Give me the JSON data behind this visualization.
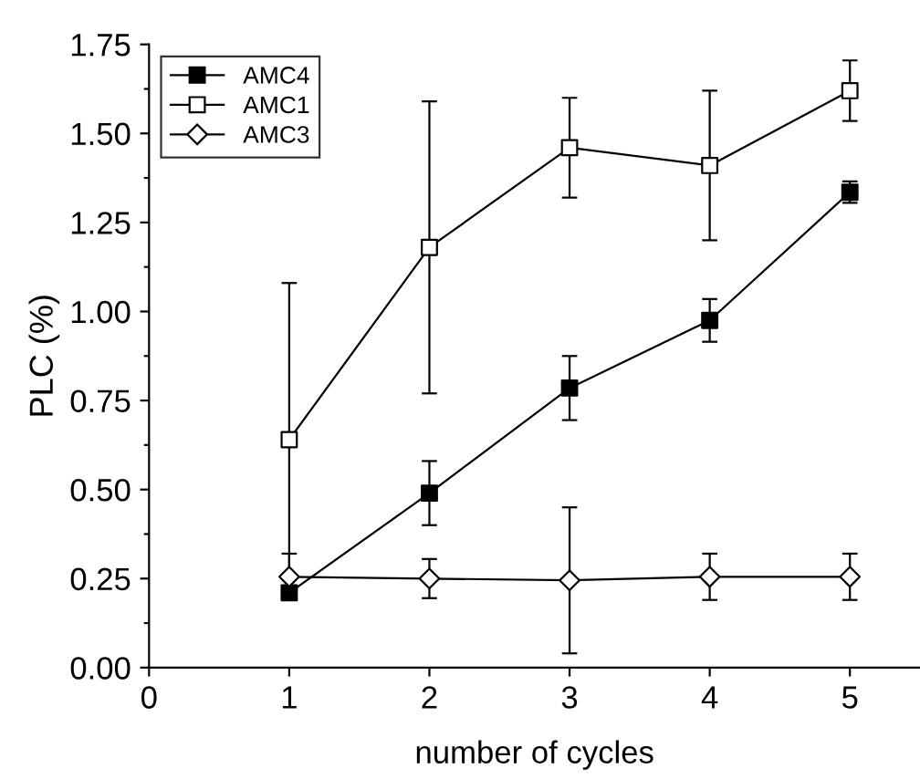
{
  "chart_data": {
    "type": "line",
    "xlabel": "number of cycles",
    "ylabel": "PLC (%)",
    "x": [
      1,
      2,
      3,
      4,
      5
    ],
    "series": [
      {
        "name": "AMC4",
        "color": "#000000",
        "marker": "square",
        "colors": [
          "#000000",
          "#000000",
          "#000000",
          "#000000",
          "#000000"
        ],
        "values": [
          0.21,
          0.49,
          0.785,
          0.975,
          1.335
        ],
        "errors": [
          null,
          0.09,
          0.09,
          0.06,
          0.03
        ]
      },
      {
        "name": "AMC1",
        "color": "#000000",
        "marker": "square",
        "colors": [
          "#ffffff",
          "#ffffff",
          "#ffffff",
          "#ffffff",
          "#ffffff"
        ],
        "values": [
          0.64,
          1.18,
          1.46,
          1.41,
          1.62
        ],
        "errors": [
          0.44,
          0.41,
          0.14,
          0.21,
          0.085
        ]
      },
      {
        "name": "AMC3",
        "color": "#000000",
        "marker": "diamond",
        "colors": [
          "#ffffff",
          "#ffffff",
          "#ffffff",
          "#ffffff",
          "#ffffff"
        ],
        "values": [
          0.255,
          0.25,
          0.245,
          0.255,
          0.255
        ],
        "errors": [
          0.065,
          0.055,
          0.205,
          0.065,
          0.065
        ]
      }
    ],
    "xlim": [
      0,
      5.5
    ],
    "xticks": [
      0,
      1,
      2,
      3,
      4,
      5
    ],
    "ylim": [
      0,
      1.75
    ],
    "yticks": [
      {
        "value": 0,
        "label": "0.00"
      },
      {
        "value": 0.25,
        "label": "0.25"
      },
      {
        "value": 0.5,
        "label": "0.50"
      },
      {
        "value": 0.75,
        "label": "0.75"
      },
      {
        "value": 1.0,
        "label": "1.00"
      },
      {
        "value": 1.25,
        "label": "1.25"
      },
      {
        "value": 1.5,
        "label": "1.50"
      },
      {
        "value": 1.75,
        "label": "1.75"
      }
    ],
    "grid": false,
    "legend": "top left",
    "line_style": "solid"
  }
}
